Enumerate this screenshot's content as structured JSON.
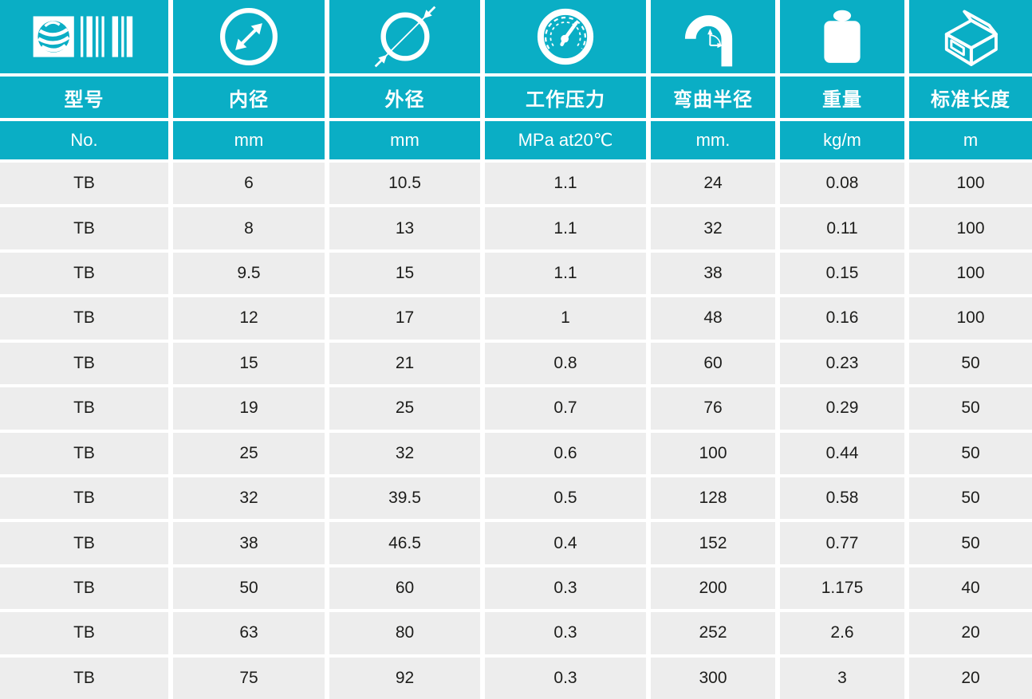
{
  "theme": {
    "teal": "#0aaec5",
    "cell_gray": "#ededed",
    "text_dark": "#1d1d1b",
    "white": "#ffffff"
  },
  "columns": [
    {
      "label": "型号",
      "unit": "No.",
      "icon": "barcode-logo-icon"
    },
    {
      "label": "内径",
      "unit": "mm",
      "icon": "inner-diameter-icon"
    },
    {
      "label": "外径",
      "unit": "mm",
      "icon": "outer-diameter-icon"
    },
    {
      "label": "工作压力",
      "unit": "MPa at20℃",
      "icon": "pressure-gauge-icon"
    },
    {
      "label": "弯曲半径",
      "unit": "mm.",
      "icon": "bend-radius-icon"
    },
    {
      "label": "重量",
      "unit": "kg/m",
      "icon": "weight-icon"
    },
    {
      "label": "标准长度",
      "unit": "m",
      "icon": "package-box-icon"
    }
  ],
  "rows": [
    [
      "TB",
      "6",
      "10.5",
      "1.1",
      "24",
      "0.08",
      "100"
    ],
    [
      "TB",
      "8",
      "13",
      "1.1",
      "32",
      "0.11",
      "100"
    ],
    [
      "TB",
      "9.5",
      "15",
      "1.1",
      "38",
      "0.15",
      "100"
    ],
    [
      "TB",
      "12",
      "17",
      "1",
      "48",
      "0.16",
      "100"
    ],
    [
      "TB",
      "15",
      "21",
      "0.8",
      "60",
      "0.23",
      "50"
    ],
    [
      "TB",
      "19",
      "25",
      "0.7",
      "76",
      "0.29",
      "50"
    ],
    [
      "TB",
      "25",
      "32",
      "0.6",
      "100",
      "0.44",
      "50"
    ],
    [
      "TB",
      "32",
      "39.5",
      "0.5",
      "128",
      "0.58",
      "50"
    ],
    [
      "TB",
      "38",
      "46.5",
      "0.4",
      "152",
      "0.77",
      "50"
    ],
    [
      "TB",
      "50",
      "60",
      "0.3",
      "200",
      "1.175",
      "40"
    ],
    [
      "TB",
      "63",
      "80",
      "0.3",
      "252",
      "2.6",
      "20"
    ],
    [
      "TB",
      "75",
      "92",
      "0.3",
      "300",
      "3",
      "20"
    ]
  ],
  "chart_data": {
    "type": "table",
    "title": "",
    "column_headers": [
      "型号",
      "内径",
      "外径",
      "工作压力",
      "弯曲半径",
      "重量",
      "标准长度"
    ],
    "column_units": [
      "No.",
      "mm",
      "mm",
      "MPa at20℃",
      "mm.",
      "kg/m",
      "m"
    ],
    "rows": [
      [
        "TB",
        6,
        10.5,
        1.1,
        24,
        0.08,
        100
      ],
      [
        "TB",
        8,
        13,
        1.1,
        32,
        0.11,
        100
      ],
      [
        "TB",
        9.5,
        15,
        1.1,
        38,
        0.15,
        100
      ],
      [
        "TB",
        12,
        17,
        1,
        48,
        0.16,
        100
      ],
      [
        "TB",
        15,
        21,
        0.8,
        60,
        0.23,
        50
      ],
      [
        "TB",
        19,
        25,
        0.7,
        76,
        0.29,
        50
      ],
      [
        "TB",
        25,
        32,
        0.6,
        100,
        0.44,
        50
      ],
      [
        "TB",
        32,
        39.5,
        0.5,
        128,
        0.58,
        50
      ],
      [
        "TB",
        38,
        46.5,
        0.4,
        152,
        0.77,
        50
      ],
      [
        "TB",
        50,
        60,
        0.3,
        200,
        1.175,
        40
      ],
      [
        "TB",
        63,
        80,
        0.3,
        252,
        2.6,
        20
      ],
      [
        "TB",
        75,
        92,
        0.3,
        300,
        3,
        20
      ]
    ]
  }
}
